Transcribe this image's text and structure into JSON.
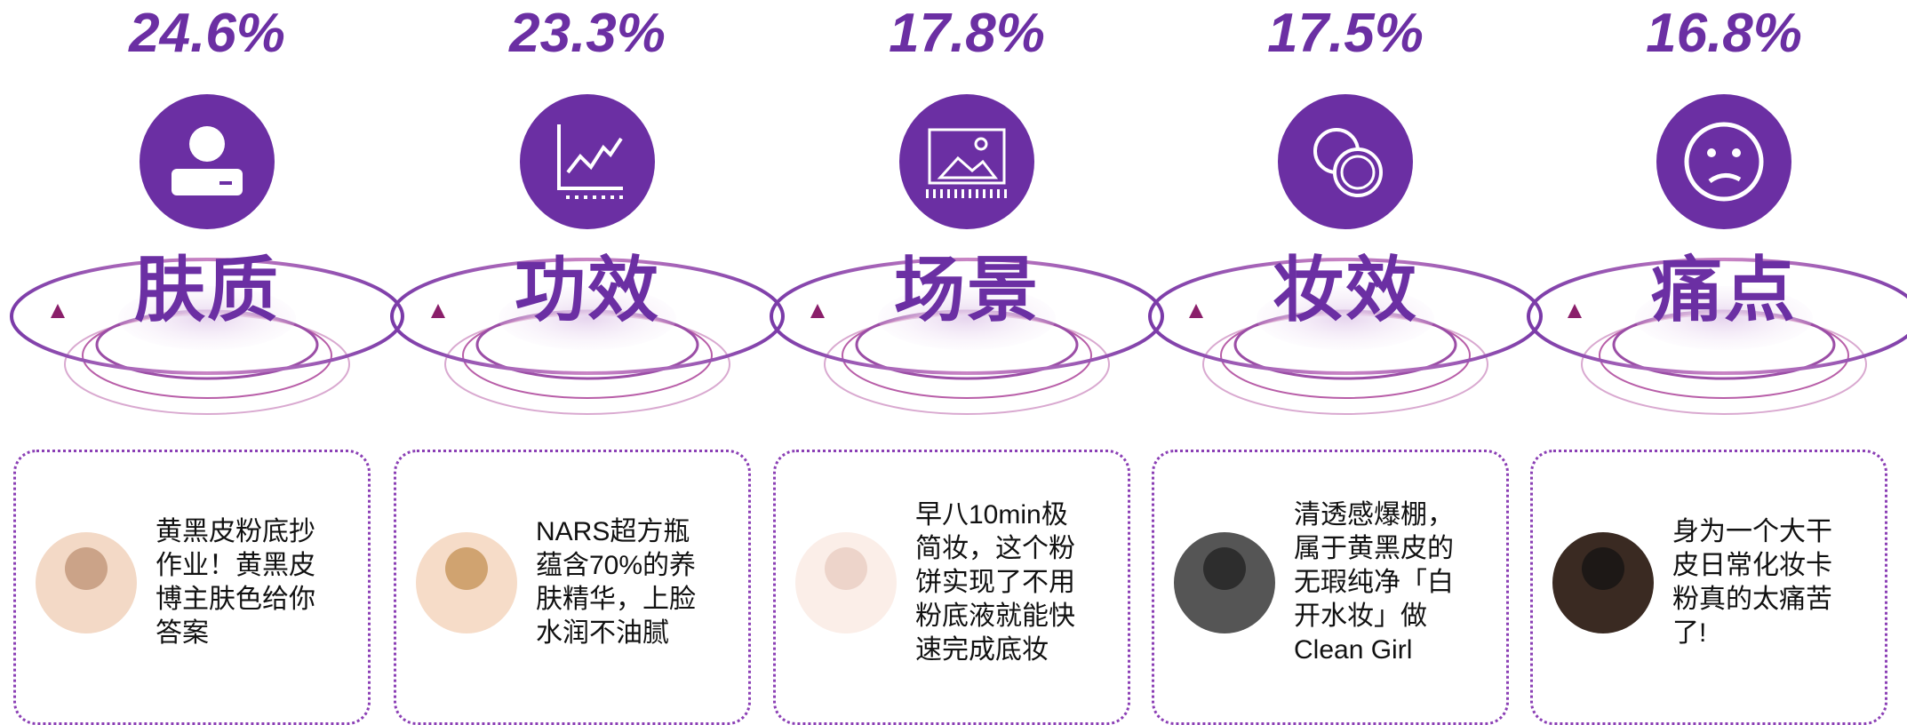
{
  "items": [
    {
      "percent": "24.6%",
      "label": "肤质",
      "lines": [
        "黄黑皮粉底抄",
        "作业！黄黑皮",
        "博主肤色给你",
        "答案"
      ]
    },
    {
      "percent": "23.3%",
      "label": "功效",
      "lines": [
        "NARS超方瓶",
        "蕴含70%的养",
        "肤精华，上脸",
        "水润不油腻"
      ]
    },
    {
      "percent": "17.8%",
      "label": "场景",
      "lines": [
        "早八10min极",
        "简妆，这个粉",
        "饼实现了不用",
        "粉底液就能快",
        "速完成底妆"
      ]
    },
    {
      "percent": "17.5%",
      "label": "妆效",
      "lines": [
        "清透感爆棚，",
        "属于黄黑皮的",
        "无瑕纯净「白",
        "开水妆」做",
        "Clean Girl"
      ]
    },
    {
      "percent": "16.8%",
      "label": "痛点",
      "lines": [
        "身为一个大干",
        "皮日常化妆卡",
        "粉真的太痛苦",
        "了!"
      ]
    }
  ]
}
